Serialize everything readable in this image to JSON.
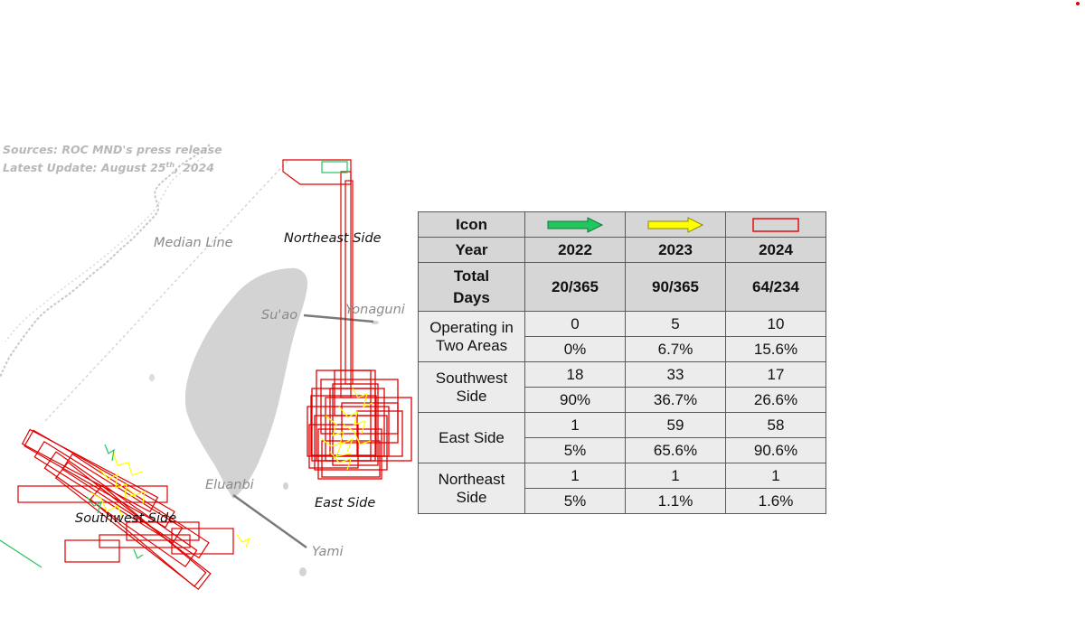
{
  "sources": {
    "line1": "Sources: ROC MND's press release",
    "line2_prefix": "Latest Update: August 25",
    "line2_sup": "th",
    "line2_suffix": ", 2024"
  },
  "map_labels": {
    "median_line": "Median Line",
    "northeast_side": "Northeast Side",
    "suao": "Su'ao",
    "yonaguni": "Yonaguni",
    "eluanbi": "Eluanbi",
    "east_side": "East Side",
    "southwest_side": "Southwest Side",
    "yami": "Yami"
  },
  "colors": {
    "y2022": "#22c55e",
    "y2023": "#ffff00",
    "y2024": "#e00000",
    "land": "#d3d3d3"
  },
  "table": {
    "icon_label": "Icon",
    "icons": [
      "green-arrow-icon",
      "yellow-arrow-icon",
      "red-rectangle-icon"
    ],
    "year_label": "Year",
    "years": [
      "2022",
      "2023",
      "2024"
    ],
    "total_label_1": "Total",
    "total_label_2": "Days",
    "totals": [
      "20/365",
      "90/365",
      "64/234"
    ],
    "groups": [
      {
        "label1": "Operating in",
        "label2": "Two Areas",
        "counts": [
          "0",
          "5",
          "10"
        ],
        "pcts": [
          "0%",
          "6.7%",
          "15.6%"
        ]
      },
      {
        "label1": "Southwest",
        "label2": "Side",
        "counts": [
          "18",
          "33",
          "17"
        ],
        "pcts": [
          "90%",
          "36.7%",
          "26.6%"
        ]
      },
      {
        "label1": "East Side",
        "label2": "",
        "counts": [
          "1",
          "59",
          "58"
        ],
        "pcts": [
          "5%",
          "65.6%",
          "90.6%"
        ]
      },
      {
        "label1": "Northeast",
        "label2": "Side",
        "counts": [
          "1",
          "1",
          "1"
        ],
        "pcts": [
          "5%",
          "1.1%",
          "1.6%"
        ]
      }
    ]
  }
}
